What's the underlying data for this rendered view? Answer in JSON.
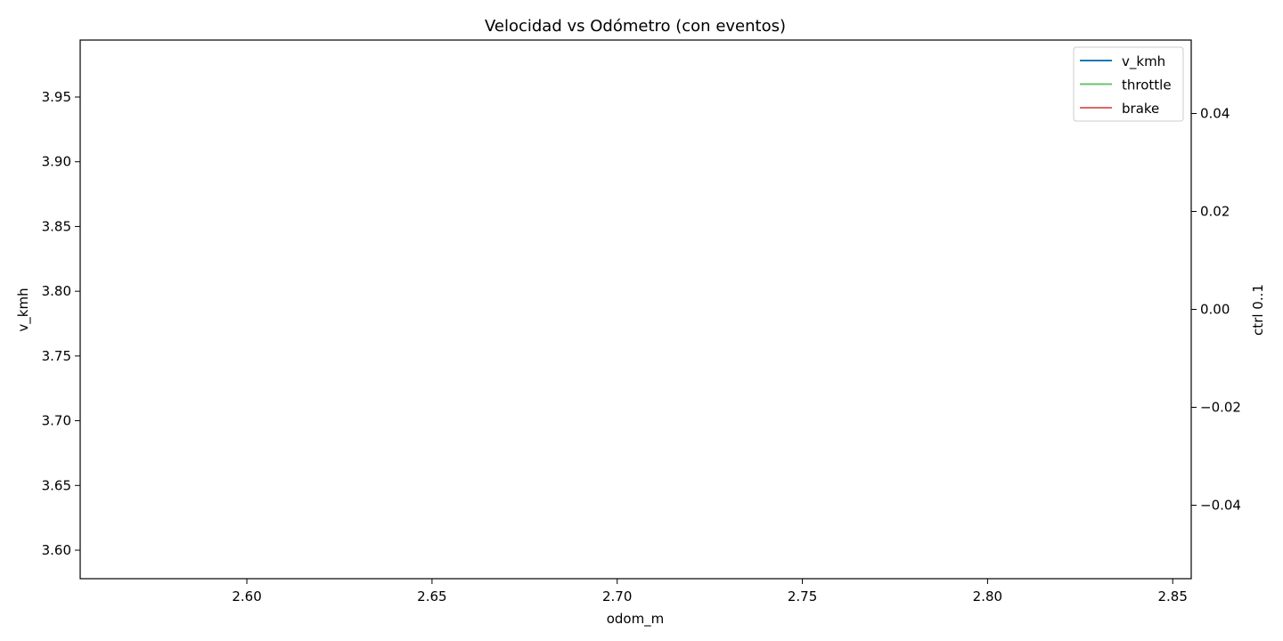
{
  "chart_data": {
    "type": "line",
    "title": "Velocidad vs Odómetro (con eventos)",
    "xlabel": "odom_m",
    "ylabel": "v_kmh",
    "y2label": "ctrl 0..1",
    "xlim": [
      2.555,
      2.855
    ],
    "ylim": [
      3.578,
      3.994
    ],
    "y2lim": [
      -0.055,
      0.055
    ],
    "x_ticks": [
      2.6,
      2.65,
      2.7,
      2.75,
      2.8,
      2.85
    ],
    "x_tick_labels": [
      "2.60",
      "2.65",
      "2.70",
      "2.75",
      "2.80",
      "2.85"
    ],
    "y_ticks": [
      3.6,
      3.65,
      3.7,
      3.75,
      3.8,
      3.85,
      3.9,
      3.95
    ],
    "y_tick_labels": [
      "3.60",
      "3.65",
      "3.70",
      "3.75",
      "3.80",
      "3.85",
      "3.90",
      "3.95"
    ],
    "y2_ticks": [
      -0.04,
      -0.02,
      0.0,
      0.02,
      0.04
    ],
    "y2_tick_labels": [
      "−0.04",
      "−0.02",
      "0.00",
      "0.02",
      "0.04"
    ],
    "legend_position": "top-right",
    "grid": false,
    "series": [
      {
        "name": "v_kmh",
        "axis": "left",
        "color": "#1f77b4",
        "x": [],
        "y": []
      },
      {
        "name": "throttle",
        "axis": "right",
        "color": "#6cc36c",
        "x": [],
        "y": []
      },
      {
        "name": "brake",
        "axis": "right",
        "color": "#e06666",
        "x": [],
        "y": []
      }
    ]
  }
}
